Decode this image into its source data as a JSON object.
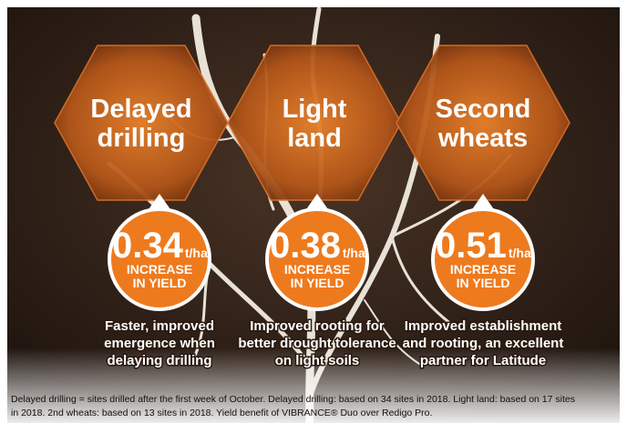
{
  "panels": [
    {
      "title": [
        "Delayed",
        "drilling"
      ],
      "value": 0.34,
      "unit": "t/ha",
      "label": [
        "INCREASE",
        "IN YIELD"
      ],
      "description": [
        "Faster, improved",
        "emergence when",
        "delaying drilling"
      ]
    },
    {
      "title": [
        "Light",
        "land"
      ],
      "value": 0.38,
      "unit": "t/ha",
      "label": [
        "INCREASE",
        "IN YIELD"
      ],
      "description": [
        "Improved rooting for",
        "better drought tolerance",
        "on light soils"
      ]
    },
    {
      "title": [
        "Second",
        "wheats"
      ],
      "value": 0.51,
      "unit": "t/ha",
      "label": [
        "INCREASE",
        "IN YIELD"
      ],
      "description": [
        "Improved establishment",
        "and rooting, an excellent",
        "partner for Latitude"
      ]
    }
  ],
  "footnote": [
    "Delayed drilling = sites drilled after the first week of October. Delayed drilling: based on 34 sites in 2018. Light land: based on 17 sites",
    "in 2018. 2nd wheats: based on 13 sites in 2018. Yield benefit of VIBRANCE® Duo over Redigo Pro."
  ]
}
